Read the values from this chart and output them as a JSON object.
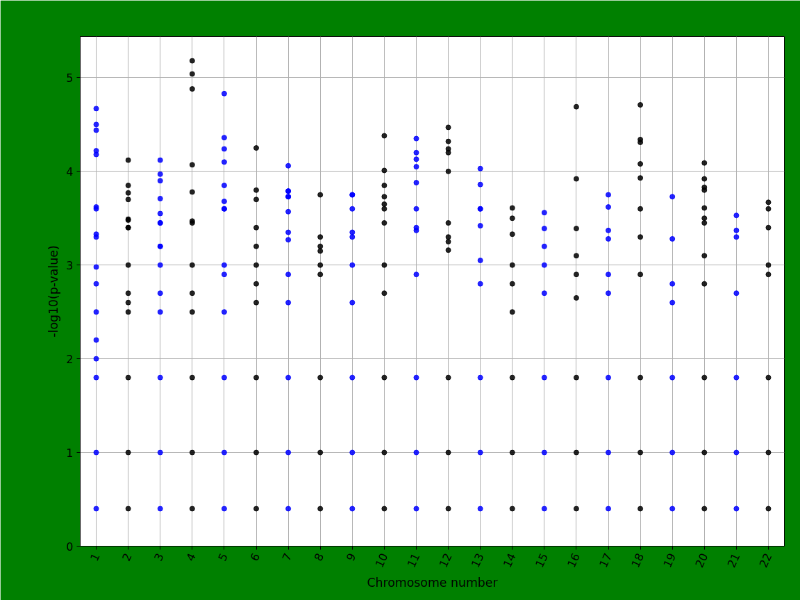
{
  "chart_data": {
    "type": "scatter",
    "xlabel": "Chromosome number",
    "ylabel": "-log10(p-value)",
    "categories": [
      "1",
      "2",
      "3",
      "4",
      "5",
      "6",
      "7",
      "8",
      "9",
      "10",
      "11",
      "12",
      "13",
      "14",
      "15",
      "16",
      "17",
      "18",
      "19",
      "20",
      "21",
      "22"
    ],
    "ylim": [
      0,
      5.44
    ],
    "yticks": [
      0,
      1,
      2,
      3,
      4,
      5
    ],
    "grid": true,
    "marker": "circle",
    "series": [
      {
        "color": "#0000ff",
        "x": [
          "1",
          "1",
          "1",
          "1",
          "1",
          "1",
          "1",
          "1",
          "1",
          "1",
          "1",
          "1",
          "1",
          "1",
          "1",
          "1",
          "1",
          "3",
          "3",
          "3",
          "3",
          "3",
          "3",
          "3",
          "3",
          "3",
          "3",
          "3",
          "3",
          "3",
          "3",
          "3",
          "5",
          "5",
          "5",
          "5",
          "5",
          "5",
          "5",
          "5",
          "5",
          "5",
          "5",
          "5",
          "5",
          "5",
          "7",
          "7",
          "7",
          "7",
          "7",
          "7",
          "7",
          "7",
          "7",
          "7",
          "7",
          "7",
          "7",
          "9",
          "9",
          "9",
          "9",
          "9",
          "9",
          "9",
          "9",
          "9",
          "9",
          "11",
          "11",
          "11",
          "11",
          "11",
          "11",
          "11",
          "11",
          "11",
          "11",
          "11",
          "11",
          "13",
          "13",
          "13",
          "13",
          "13",
          "13",
          "13",
          "13",
          "13",
          "13",
          "15",
          "15",
          "15",
          "15",
          "15",
          "15",
          "15",
          "15",
          "17",
          "17",
          "17",
          "17",
          "17",
          "17",
          "17",
          "17",
          "17",
          "19",
          "19",
          "19",
          "19",
          "19",
          "19",
          "19",
          "21",
          "21",
          "21",
          "21",
          "21",
          "21",
          "21"
        ],
        "values": [
          4.67,
          4.5,
          4.44,
          4.22,
          4.18,
          3.62,
          3.6,
          3.33,
          2.98,
          3.3,
          2.8,
          2.5,
          2.2,
          2.0,
          1.8,
          1.0,
          0.4,
          4.12,
          3.97,
          3.9,
          3.55,
          3.45,
          3.45,
          3.71,
          3.2,
          3.2,
          3.0,
          2.7,
          2.5,
          1.8,
          1.0,
          0.4,
          4.83,
          4.1,
          3.85,
          4.36,
          4.24,
          3.68,
          3.6,
          3.6,
          3.0,
          2.9,
          2.5,
          1.8,
          1.0,
          0.4,
          4.06,
          3.79,
          3.73,
          3.79,
          3.73,
          3.57,
          3.35,
          3.27,
          2.9,
          2.6,
          1.8,
          1.0,
          0.4,
          3.75,
          3.75,
          3.6,
          3.3,
          3.35,
          3.0,
          2.6,
          1.8,
          1.0,
          0.4,
          4.35,
          4.2,
          4.05,
          3.88,
          3.6,
          4.13,
          3.37,
          3.4,
          2.9,
          1.8,
          1.0,
          0.4,
          4.03,
          3.86,
          3.6,
          3.6,
          3.42,
          3.05,
          2.8,
          1.8,
          1.0,
          0.4,
          3.56,
          3.39,
          3.0,
          3.2,
          2.7,
          1.8,
          1.0,
          0.4,
          3.62,
          3.75,
          3.28,
          3.37,
          2.9,
          2.7,
          1.8,
          1.0,
          0.4,
          3.73,
          3.28,
          2.8,
          2.6,
          1.8,
          1.0,
          0.4,
          3.53,
          3.37,
          3.3,
          2.7,
          1.8,
          1.0,
          0.4
        ]
      },
      {
        "color": "#000000",
        "x": [
          "2",
          "2",
          "2",
          "2",
          "2",
          "2",
          "2",
          "2",
          "2",
          "2",
          "2",
          "2",
          "2",
          "2",
          "2",
          "4",
          "4",
          "4",
          "4",
          "4",
          "4",
          "4",
          "4",
          "4",
          "4",
          "4",
          "4",
          "4",
          "6",
          "6",
          "6",
          "6",
          "6",
          "6",
          "6",
          "6",
          "6",
          "6",
          "6",
          "8",
          "8",
          "8",
          "8",
          "8",
          "8",
          "8",
          "8",
          "8",
          "10",
          "10",
          "10",
          "10",
          "10",
          "10",
          "10",
          "10",
          "10",
          "10",
          "10",
          "10",
          "12",
          "12",
          "12",
          "12",
          "12",
          "12",
          "12",
          "12",
          "12",
          "12",
          "12",
          "12",
          "14",
          "14",
          "14",
          "14",
          "14",
          "14",
          "14",
          "14",
          "14",
          "16",
          "16",
          "16",
          "16",
          "16",
          "16",
          "16",
          "16",
          "16",
          "18",
          "18",
          "18",
          "18",
          "18",
          "18",
          "18",
          "18",
          "18",
          "18",
          "18",
          "20",
          "20",
          "20",
          "20",
          "20",
          "20",
          "20",
          "20",
          "20",
          "20",
          "20",
          "20",
          "22",
          "22",
          "22",
          "22",
          "22",
          "22",
          "22",
          "22"
        ],
        "values": [
          4.12,
          3.77,
          3.4,
          3.48,
          3.49,
          3.4,
          3.85,
          3.7,
          3.0,
          2.7,
          2.6,
          2.5,
          1.8,
          1.0,
          0.4,
          4.88,
          5.18,
          5.04,
          4.07,
          3.78,
          3.47,
          3.45,
          3.0,
          2.7,
          2.5,
          1.8,
          1.0,
          0.4,
          4.25,
          3.7,
          3.8,
          3.4,
          3.2,
          3.0,
          2.8,
          2.6,
          1.8,
          1.0,
          0.4,
          3.2,
          3.15,
          3.3,
          3.75,
          3.0,
          2.9,
          1.8,
          1.0,
          0.4,
          4.38,
          4.01,
          3.85,
          3.73,
          3.65,
          3.6,
          3.45,
          3.0,
          2.7,
          1.8,
          1.0,
          0.4,
          4.47,
          4.0,
          4.32,
          4.24,
          4.2,
          3.45,
          3.3,
          3.25,
          3.16,
          1.8,
          1.0,
          0.4,
          3.61,
          3.33,
          3.0,
          3.5,
          2.8,
          2.5,
          1.8,
          1.0,
          0.4,
          4.69,
          3.92,
          3.39,
          3.1,
          2.9,
          2.65,
          1.8,
          1.0,
          0.4,
          4.08,
          4.71,
          4.34,
          4.31,
          3.93,
          3.6,
          3.3,
          2.9,
          1.8,
          1.0,
          0.4,
          4.09,
          3.92,
          3.83,
          3.8,
          3.5,
          3.45,
          3.61,
          3.1,
          2.8,
          1.8,
          1.0,
          0.4,
          3.67,
          3.6,
          3.4,
          3.0,
          2.9,
          1.8,
          1.0,
          0.4
        ]
      }
    ]
  }
}
